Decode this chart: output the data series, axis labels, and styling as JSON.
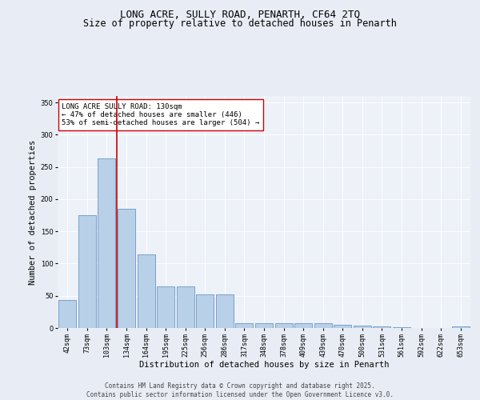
{
  "title": "LONG ACRE, SULLY ROAD, PENARTH, CF64 2TQ",
  "subtitle": "Size of property relative to detached houses in Penarth",
  "xlabel": "Distribution of detached houses by size in Penarth",
  "ylabel": "Number of detached properties",
  "categories": [
    "42sqm",
    "73sqm",
    "103sqm",
    "134sqm",
    "164sqm",
    "195sqm",
    "225sqm",
    "256sqm",
    "286sqm",
    "317sqm",
    "348sqm",
    "378sqm",
    "409sqm",
    "439sqm",
    "470sqm",
    "500sqm",
    "531sqm",
    "561sqm",
    "592sqm",
    "622sqm",
    "653sqm"
  ],
  "values": [
    44,
    175,
    263,
    185,
    114,
    65,
    65,
    52,
    52,
    7,
    7,
    8,
    7,
    7,
    5,
    4,
    2,
    1,
    0,
    0,
    3
  ],
  "bar_color": "#b8d0e8",
  "bar_edge_color": "#5588bb",
  "vline_color": "#cc0000",
  "vline_pos": 2.5,
  "annotation_text": "LONG ACRE SULLY ROAD: 130sqm\n← 47% of detached houses are smaller (446)\n53% of semi-detached houses are larger (504) →",
  "annotation_box_color": "#ffffff",
  "annotation_box_edge": "#cc0000",
  "ylim": [
    0,
    360
  ],
  "yticks": [
    0,
    50,
    100,
    150,
    200,
    250,
    300,
    350
  ],
  "bg_color": "#e8edf5",
  "plot_bg_color": "#edf1f8",
  "footer_line1": "Contains HM Land Registry data © Crown copyright and database right 2025.",
  "footer_line2": "Contains public sector information licensed under the Open Government Licence v3.0.",
  "title_fontsize": 9,
  "subtitle_fontsize": 8.5,
  "axis_label_fontsize": 7.5,
  "tick_fontsize": 6,
  "annotation_fontsize": 6.5,
  "footer_fontsize": 5.5
}
